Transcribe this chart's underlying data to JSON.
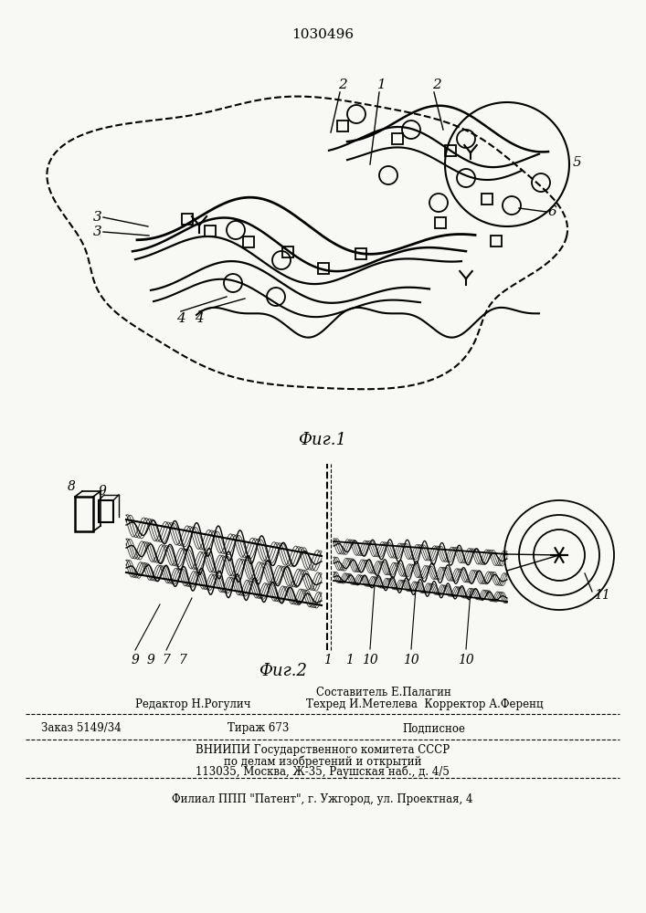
{
  "patent_number": "1030496",
  "fig1_label": "Фиг.1",
  "fig2_label": "Фиг.2",
  "background_color": "#f8f8f5",
  "line_color": "#000000"
}
